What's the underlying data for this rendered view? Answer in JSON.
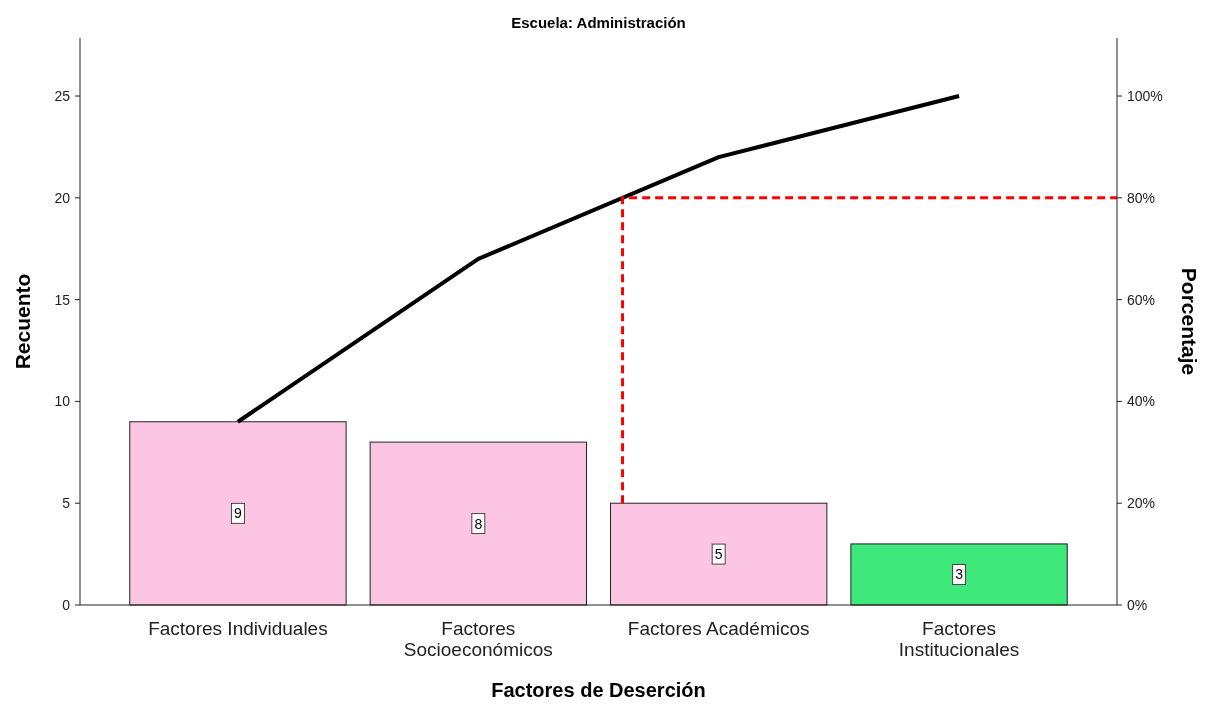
{
  "chart_data": {
    "type": "bar",
    "title": "Escuela: Administración",
    "xlabel": "Factores de Deserción",
    "ylabel": "Recuento",
    "y2label": "Porcentaje",
    "categories": [
      "Factores Individuales",
      "Factores Socioeconómicos",
      "Factores Académicos",
      "Factores Institucionales"
    ],
    "series": [
      {
        "colors": [
          "#fcc5e3",
          "#fcc5e3",
          "#fcc5e3",
          "#3fe87a"
        ],
        "values": [
          9,
          8,
          5,
          3
        ],
        "value_labels": [
          "9",
          "8",
          "5",
          "3"
        ]
      },
      {
        "type": "line",
        "axis": "y2",
        "color": "#000000",
        "values": [
          36,
          68,
          88,
          100
        ]
      }
    ],
    "ylim": [
      0,
      27.85
    ],
    "yticks": [
      0,
      5,
      10,
      15,
      20,
      25
    ],
    "y2lim": [
      0,
      111.4
    ],
    "y2ticks": [
      {
        "value": 0,
        "label": "0%"
      },
      {
        "value": 20,
        "label": "20%"
      },
      {
        "value": 40,
        "label": "40%"
      },
      {
        "value": 60,
        "label": "60%"
      },
      {
        "value": 80,
        "label": "80%"
      },
      {
        "value": 100,
        "label": "100%"
      }
    ],
    "ref_lines": [
      {
        "axis": "y2",
        "value": 80,
        "color": "#ff0000",
        "line_style": "dashed"
      }
    ],
    "grid": false
  }
}
